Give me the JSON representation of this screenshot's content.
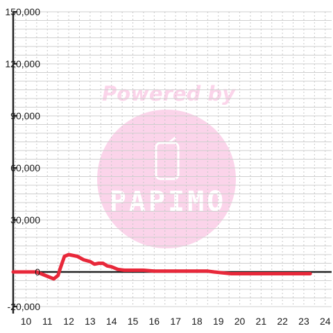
{
  "watermark": {
    "text": "Powered by",
    "brand": "PAPIMO",
    "circle_color": "#fbd4ea",
    "icon": "phone-icon"
  },
  "chart_data": {
    "type": "line",
    "x_ticks": [
      10,
      11,
      12,
      13,
      14,
      15,
      16,
      17,
      18,
      19,
      20,
      21,
      22,
      23,
      24
    ],
    "y_ticks": [
      -20000,
      0,
      30000,
      60000,
      90000,
      120000,
      150000
    ],
    "y_tick_labels": [
      "-20,000",
      "0",
      "30,000",
      "60,000",
      "90,000",
      "120,000",
      "150,000"
    ],
    "xlim": [
      9.4,
      24.3
    ],
    "ylim": [
      -20000,
      150000
    ],
    "grid": true,
    "line_color": "#e8283a",
    "series": [
      {
        "x": [
          9.4,
          10.5,
          10.9,
          11.1,
          11.3,
          11.5,
          11.6,
          11.8,
          12.0,
          12.4,
          12.7,
          13.0,
          13.2,
          13.4,
          13.6,
          13.8,
          14.0,
          14.3,
          14.6,
          15.0,
          15.5,
          16.0,
          16.5,
          17.0,
          17.5,
          18.0,
          18.5,
          18.8,
          19.2,
          19.6,
          20.0,
          20.5,
          21.0,
          21.5,
          22.0,
          22.5,
          23.0,
          23.3
        ],
        "y": [
          0,
          0,
          -2000,
          -3000,
          -4000,
          -2000,
          2000,
          9000,
          10000,
          9000,
          7000,
          6000,
          4500,
          5000,
          5000,
          3500,
          3000,
          1500,
          1000,
          1000,
          1000,
          500,
          500,
          500,
          500,
          500,
          500,
          0,
          -500,
          -1000,
          -1000,
          -1000,
          -1000,
          -1000,
          -1000,
          -1000,
          -1000,
          -1000
        ]
      }
    ]
  }
}
